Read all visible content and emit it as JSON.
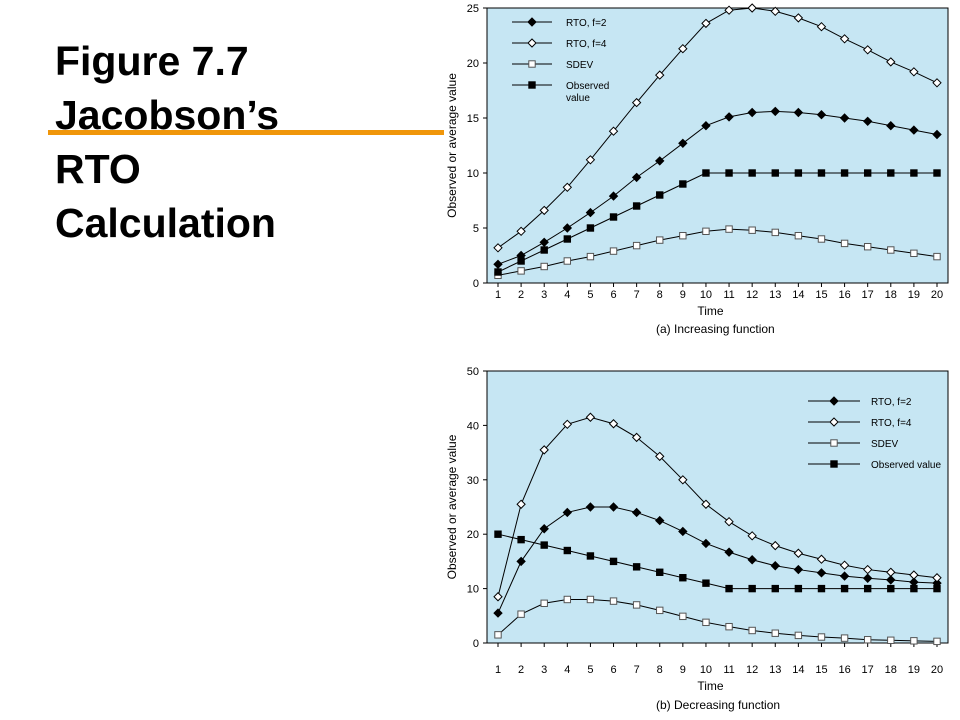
{
  "title_lines": [
    "Figure 7.7",
    "Jacobson’s",
    "RTO",
    "Calculation"
  ],
  "colors": {
    "plot_background": "#c6e6f3",
    "accent_rule": "#f0960a",
    "line": "#000000"
  },
  "chart_data": [
    {
      "type": "line",
      "caption": "(a) Increasing function",
      "xlabel": "Time",
      "ylabel": "Observed or average value",
      "x": [
        1,
        2,
        3,
        4,
        5,
        6,
        7,
        8,
        9,
        10,
        11,
        12,
        13,
        14,
        15,
        16,
        17,
        18,
        19,
        20
      ],
      "xlim": [
        1,
        20
      ],
      "ylim": [
        0,
        25
      ],
      "yticks": [
        0,
        5,
        10,
        15,
        20,
        25
      ],
      "grid": false,
      "legend_position": "top-left",
      "series": [
        {
          "name": "RTO, f=2",
          "marker": "filled-diamond",
          "values": [
            1.7,
            2.5,
            3.7,
            5.0,
            6.4,
            7.9,
            9.6,
            11.1,
            12.7,
            14.3,
            15.1,
            15.5,
            15.6,
            15.5,
            15.3,
            15.0,
            14.7,
            14.3,
            13.9,
            13.5
          ]
        },
        {
          "name": "RTO, f=4",
          "marker": "open-diamond",
          "values": [
            3.2,
            4.7,
            6.6,
            8.7,
            11.2,
            13.8,
            16.4,
            18.9,
            21.3,
            23.6,
            24.8,
            25.0,
            24.7,
            24.1,
            23.3,
            22.2,
            21.2,
            20.1,
            19.2,
            18.2
          ]
        },
        {
          "name": "SDEV",
          "marker": "open-square",
          "values": [
            0.7,
            1.1,
            1.5,
            2.0,
            2.4,
            2.9,
            3.4,
            3.9,
            4.3,
            4.7,
            4.9,
            4.8,
            4.6,
            4.3,
            4.0,
            3.6,
            3.3,
            3.0,
            2.7,
            2.4
          ]
        },
        {
          "name": "Observed value",
          "legend_lines": [
            "Observed",
            "value"
          ],
          "marker": "filled-square",
          "values": [
            1,
            2,
            3,
            4,
            5,
            6,
            7,
            8,
            9,
            10,
            10,
            10,
            10,
            10,
            10,
            10,
            10,
            10,
            10,
            10
          ]
        }
      ]
    },
    {
      "type": "line",
      "caption": "(b) Decreasing function",
      "xlabel": "Time",
      "ylabel": "Observed or average value",
      "x": [
        1,
        2,
        3,
        4,
        5,
        6,
        7,
        8,
        9,
        10,
        11,
        12,
        13,
        14,
        15,
        16,
        17,
        18,
        19,
        20
      ],
      "xlim": [
        1,
        20
      ],
      "ylim": [
        0,
        50
      ],
      "yticks": [
        0,
        10,
        20,
        30,
        40,
        50
      ],
      "grid": false,
      "legend_position": "top-right",
      "series": [
        {
          "name": "RTO, f=2",
          "marker": "filled-diamond",
          "values": [
            5.5,
            15.0,
            21.0,
            24.0,
            25.0,
            25.0,
            24.0,
            22.5,
            20.5,
            18.3,
            16.7,
            15.3,
            14.2,
            13.5,
            12.9,
            12.3,
            11.9,
            11.6,
            11.2,
            11.0
          ]
        },
        {
          "name": "RTO, f=4",
          "marker": "open-diamond",
          "values": [
            8.5,
            25.5,
            35.5,
            40.2,
            41.5,
            40.3,
            37.8,
            34.3,
            30.0,
            25.5,
            22.3,
            19.7,
            17.9,
            16.5,
            15.4,
            14.3,
            13.5,
            13.0,
            12.5,
            12.0
          ]
        },
        {
          "name": "SDEV",
          "marker": "open-square",
          "values": [
            1.5,
            5.3,
            7.3,
            8.0,
            8.0,
            7.7,
            7.0,
            6.0,
            4.9,
            3.8,
            3.0,
            2.3,
            1.8,
            1.4,
            1.1,
            0.9,
            0.6,
            0.5,
            0.4,
            0.3
          ]
        },
        {
          "name": "Observed value",
          "legend_lines": [
            "Observed value"
          ],
          "marker": "filled-square",
          "values": [
            20,
            19,
            18,
            17,
            16,
            15,
            14,
            13,
            12,
            11,
            10,
            10,
            10,
            10,
            10,
            10,
            10,
            10,
            10,
            10
          ]
        }
      ]
    }
  ]
}
